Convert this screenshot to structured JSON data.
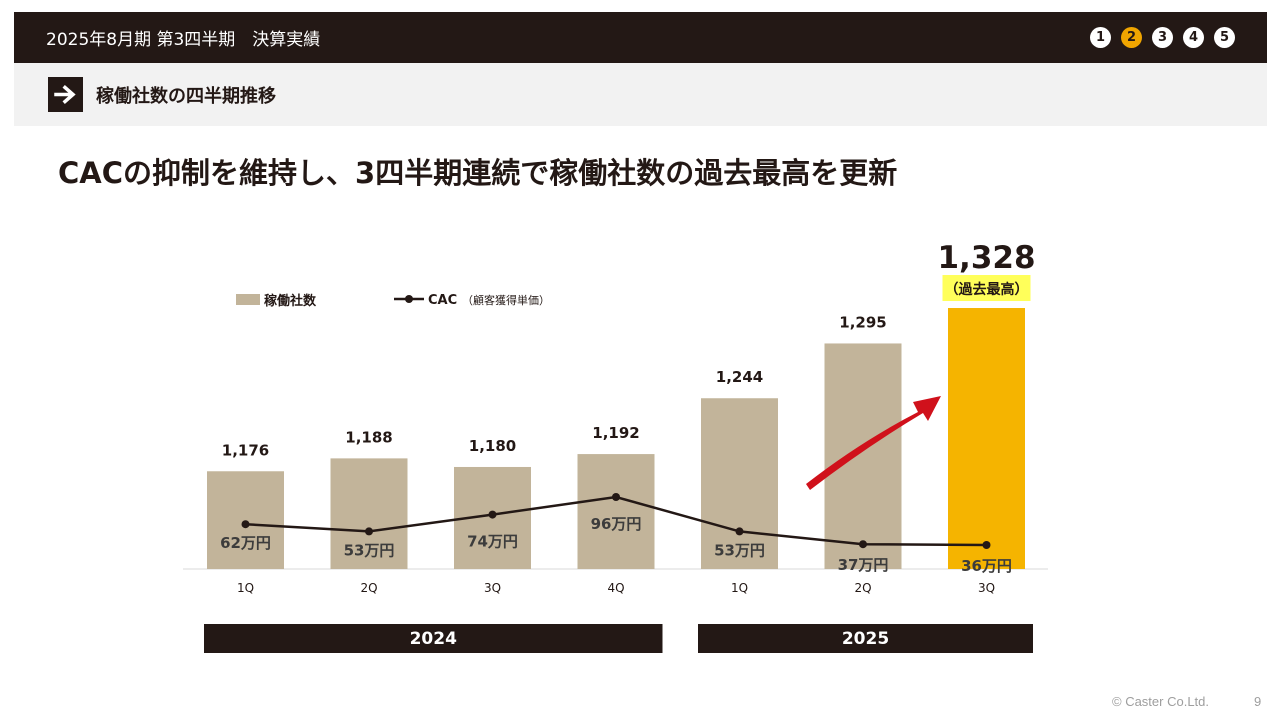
{
  "header": {
    "title": "2025年8月期 第3四半期　決算実績",
    "steps": [
      "1",
      "2",
      "3",
      "4",
      "5"
    ],
    "active_step": 1
  },
  "section": {
    "label": "稼働社数の四半期推移",
    "icon": "arrow-right-icon"
  },
  "headline": "CACの抑制を維持し、3四半期連続で稼働社数の過去最高を更新",
  "chart_data": {
    "type": "bar",
    "categories": [
      "1Q",
      "2Q",
      "3Q",
      "4Q",
      "1Q",
      "2Q",
      "3Q"
    ],
    "series": [
      {
        "name": "稼働社数",
        "type": "bar",
        "values": [
          1176,
          1188,
          1180,
          1192,
          1244,
          1295,
          1328
        ],
        "labels": [
          "1,176",
          "1,188",
          "1,180",
          "1,192",
          "1,244",
          "1,295",
          "1,328"
        ]
      },
      {
        "name": "CAC",
        "name_note": "（顧客獲得単価）",
        "type": "line",
        "values": [
          62,
          53,
          74,
          96,
          53,
          37,
          36
        ],
        "labels": [
          "62万円",
          "53万円",
          "74万円",
          "96万円",
          "53万円",
          "37万円",
          "36万円"
        ]
      }
    ],
    "year_groups": [
      {
        "label": "2024",
        "categories": [
          0,
          1,
          2,
          3
        ]
      },
      {
        "label": "2025",
        "categories": [
          4,
          5,
          6
        ]
      }
    ],
    "highlight": {
      "index": 6,
      "badge": "（過去最高）"
    },
    "colors": {
      "bar": "#c2b49a",
      "highlight_bar": "#f5b400",
      "line": "#231815",
      "arrow": "#d0111b",
      "badge_bg": "#ffff5a",
      "year_bar": "#231815"
    },
    "legend_position": "top-left"
  },
  "footer": {
    "copyright": "© Caster Co.Ltd.",
    "page": "9"
  }
}
